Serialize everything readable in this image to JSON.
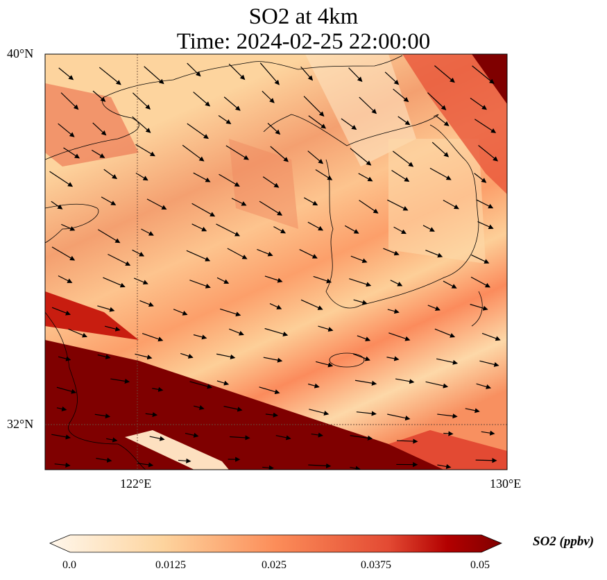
{
  "title": {
    "line1": "SO2 at 4km",
    "line2": "Time: 2024-02-25 22:00:00"
  },
  "axes": {
    "lat_ticks": [
      "40°N",
      "32°N"
    ],
    "lon_ticks": [
      "122°E",
      "130°E"
    ],
    "lon_range": [
      120,
      130
    ],
    "lat_range": [
      31.03,
      40
    ]
  },
  "colorbar": {
    "label": "SO2 (ppbv)",
    "ticks": [
      "0.0",
      "0.0125",
      "0.025",
      "0.0375",
      "0.05"
    ],
    "range": [
      0,
      0.05
    ],
    "extend": "both",
    "colormap": [
      "#fff7ec",
      "#fdd49e",
      "#fc8d59",
      "#d7301f",
      "#7f0000"
    ]
  }
}
